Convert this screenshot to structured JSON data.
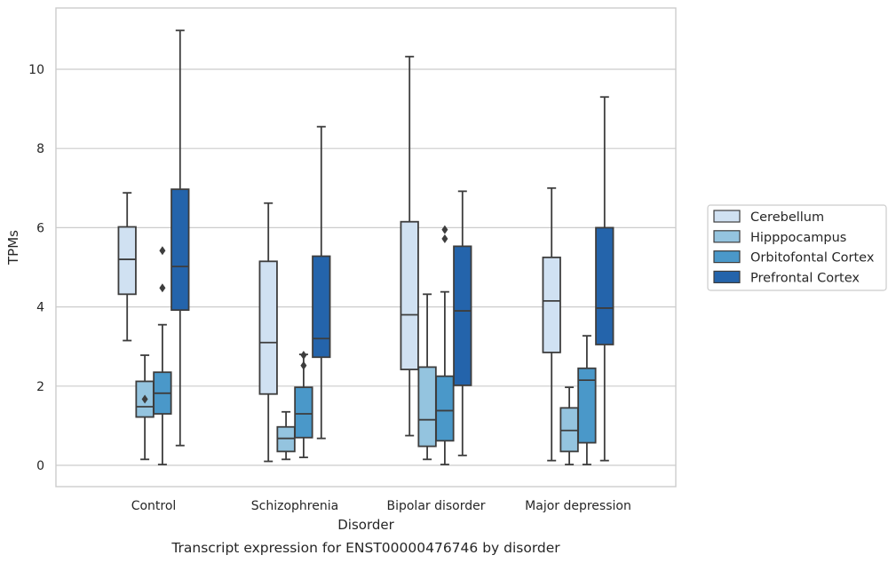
{
  "caption": "Transcript expression for ENST00000476746 by disorder",
  "colors": {
    "Cerebellum": "#d0e1f2",
    "Hipppocampus": "#94c4df",
    "Orbitofontal Cortex": "#4a98c9",
    "Prefrontal Cortex": "#2464ab",
    "grid": "#cccccc",
    "frame": "#cccccc",
    "box_edge": "#3d3d3d"
  },
  "chart_data": {
    "type": "boxplot",
    "title": "",
    "xlabel": "Disorder",
    "ylabel": "TPMs",
    "ylim": [
      -0.5,
      11.5
    ],
    "yticks": [
      0,
      2,
      4,
      6,
      8,
      10
    ],
    "grid": "horizontal",
    "legend_position": "right",
    "categories": [
      "Control",
      "Schizophrenia",
      "Bipolar disorder",
      "Major depression"
    ],
    "series": [
      {
        "name": "Cerebellum",
        "boxes": [
          {
            "whislo": 3.15,
            "q1": 4.32,
            "med": 5.2,
            "q3": 6.02,
            "whishi": 6.88,
            "fliers": []
          },
          {
            "whislo": 0.1,
            "q1": 1.8,
            "med": 3.1,
            "q3": 5.15,
            "whishi": 6.62,
            "fliers": []
          },
          {
            "whislo": 0.75,
            "q1": 2.42,
            "med": 3.8,
            "q3": 6.15,
            "whishi": 10.32,
            "fliers": []
          },
          {
            "whislo": 0.12,
            "q1": 2.85,
            "med": 4.15,
            "q3": 5.25,
            "whishi": 7.0,
            "fliers": []
          }
        ]
      },
      {
        "name": "Hipppocampus",
        "boxes": [
          {
            "whislo": 0.15,
            "q1": 1.22,
            "med": 1.48,
            "q3": 2.12,
            "whishi": 2.78,
            "fliers": [
              1.67
            ]
          },
          {
            "whislo": 0.15,
            "q1": 0.35,
            "med": 0.68,
            "q3": 0.97,
            "whishi": 1.35,
            "fliers": []
          },
          {
            "whislo": 0.15,
            "q1": 0.48,
            "med": 1.15,
            "q3": 2.48,
            "whishi": 4.32,
            "fliers": []
          },
          {
            "whislo": 0.02,
            "q1": 0.35,
            "med": 0.88,
            "q3": 1.45,
            "whishi": 1.97,
            "fliers": []
          }
        ]
      },
      {
        "name": "Orbitofontal Cortex",
        "boxes": [
          {
            "whislo": 0.02,
            "q1": 1.3,
            "med": 1.82,
            "q3": 2.35,
            "whishi": 3.55,
            "fliers": [
              4.48,
              5.42
            ]
          },
          {
            "whislo": 0.2,
            "q1": 0.7,
            "med": 1.3,
            "q3": 1.97,
            "whishi": 2.8,
            "fliers": [
              2.52,
              2.78
            ]
          },
          {
            "whislo": 0.02,
            "q1": 0.62,
            "med": 1.38,
            "q3": 2.25,
            "whishi": 4.38,
            "fliers": [
              5.72,
              5.95
            ]
          },
          {
            "whislo": 0.02,
            "q1": 0.57,
            "med": 2.15,
            "q3": 2.45,
            "whishi": 3.27,
            "fliers": []
          }
        ]
      },
      {
        "name": "Prefrontal Cortex",
        "boxes": [
          {
            "whislo": 0.5,
            "q1": 3.92,
            "med": 5.02,
            "q3": 6.97,
            "whishi": 10.98,
            "fliers": []
          },
          {
            "whislo": 0.68,
            "q1": 2.73,
            "med": 3.2,
            "q3": 5.28,
            "whishi": 8.55,
            "fliers": []
          },
          {
            "whislo": 0.25,
            "q1": 2.02,
            "med": 3.9,
            "q3": 5.53,
            "whishi": 6.92,
            "fliers": []
          },
          {
            "whislo": 0.12,
            "q1": 3.05,
            "med": 3.97,
            "q3": 6.0,
            "whishi": 9.3,
            "fliers": []
          }
        ]
      }
    ]
  }
}
